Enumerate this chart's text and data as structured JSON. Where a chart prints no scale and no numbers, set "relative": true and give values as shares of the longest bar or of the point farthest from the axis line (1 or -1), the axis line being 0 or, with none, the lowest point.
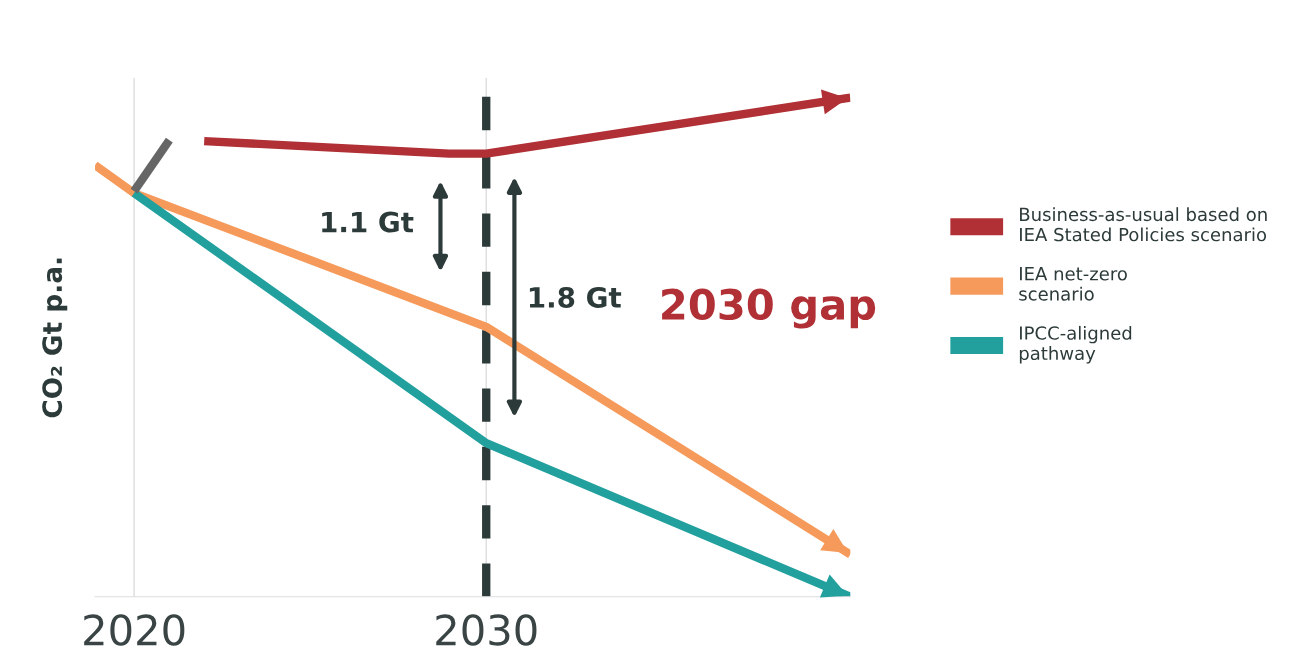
{
  "chart_data": {
    "type": "line",
    "relative": true,
    "ylabel": "CO₂ Gt p.a.",
    "xlim": [
      2018.89,
      2040.34
    ],
    "xticks": [
      2020,
      2030
    ],
    "grid": "x",
    "legend": "right",
    "series": [
      {
        "name": "Business-as-usual based on\nIEA Stated Policies scenario",
        "color": "#b03035",
        "x": [
          2021.99,
          2028.95,
          2030,
          2040.34
        ],
        "values": [
          0.913,
          0.888,
          0.888,
          1.0
        ]
      },
      {
        "name": "IEA net-zero\nscenario",
        "color": "#f59a5a",
        "x": [
          2018.89,
          2020,
          2030,
          2040.34
        ],
        "values": [
          0.865,
          0.809,
          0.541,
          0.085
        ]
      },
      {
        "name": "IPCC-aligned\npathway",
        "color": "#22a09e",
        "x": [
          2020,
          2030,
          2040.34
        ],
        "values": [
          0.809,
          0.308,
          0.0
        ]
      },
      {
        "color": "#666666",
        "x": [
          2020,
          2021
        ],
        "values": [
          0.813,
          0.915
        ]
      }
    ],
    "ref_lines": [
      {
        "axis": "x",
        "value": 2030,
        "color": "#2d3a3a",
        "line_style": "dashed"
      }
    ],
    "annotations": [
      "1.1 Gt",
      "1.8 Gt",
      "2030 gap"
    ]
  }
}
